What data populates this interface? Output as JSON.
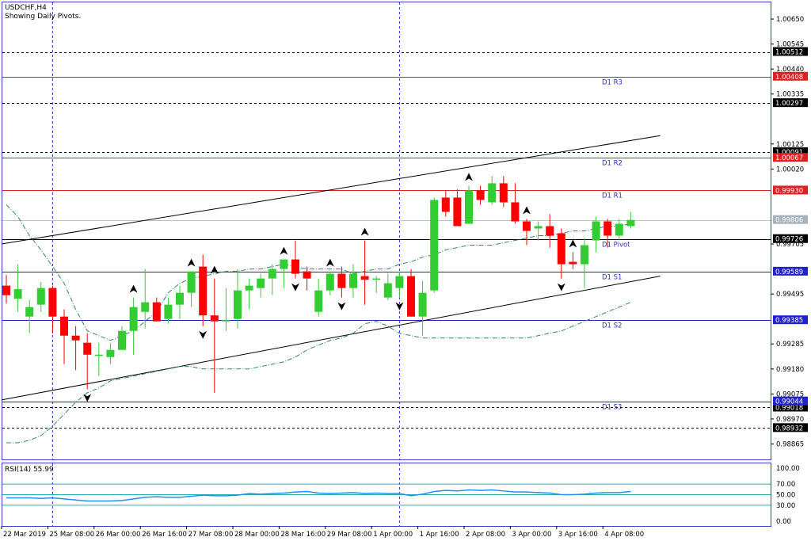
{
  "header": {
    "symbol": "USDCHF,H4",
    "subtitle": "Showing Daily Pivots."
  },
  "rsi_label": "RSI(14) 55.99",
  "colors": {
    "bull": "#32cd32",
    "bear": "#ff0000",
    "pivot_resistance": "#e02020",
    "pivot_support": "#2222cc",
    "pivot_main": "#000000",
    "frame": "#3b3bd6",
    "rsi": "#1e90ff",
    "rsi_levels": "#20b2aa",
    "ma": "#2e8b57"
  },
  "chart_data": {
    "type": "candlestick",
    "price_axis": {
      "range": [
        0.988,
        1.0072
      ],
      "ticks": [
        "1.00650",
        "1.00545",
        "1.00440",
        "1.00335",
        "1.00125",
        "1.00020",
        "0.99705",
        "0.99495",
        "0.99285",
        "0.99180",
        "0.99075",
        "0.98970",
        "0.98865"
      ]
    },
    "time_axis": {
      "ticks": [
        {
          "index": 0,
          "label": "22 Mar 2019"
        },
        {
          "index": 4,
          "label": "25 Mar 08:00"
        },
        {
          "index": 8,
          "label": "26 Mar 00:00"
        },
        {
          "index": 12,
          "label": "26 Mar 16:00"
        },
        {
          "index": 16,
          "label": "27 Mar 08:00"
        },
        {
          "index": 20,
          "label": "28 Mar 00:00"
        },
        {
          "index": 24,
          "label": "28 Mar 16:00"
        },
        {
          "index": 28,
          "label": "29 Mar 08:00"
        },
        {
          "index": 32,
          "label": "1 Apr 00:00"
        },
        {
          "index": 36,
          "label": "1 Apr 16:00"
        },
        {
          "index": 40,
          "label": "2 Apr 08:00"
        },
        {
          "index": 44,
          "label": "3 Apr 00:00"
        },
        {
          "index": 48,
          "label": "3 Apr 16:00"
        },
        {
          "index": 52,
          "label": "4 Apr 08:00"
        }
      ]
    },
    "candles": [
      {
        "o": 0.9953,
        "h": 0.99575,
        "l": 0.99455,
        "c": 0.9949
      },
      {
        "o": 0.99475,
        "h": 0.9962,
        "l": 0.9942,
        "c": 0.99515
      },
      {
        "o": 0.994,
        "h": 0.9947,
        "l": 0.9933,
        "c": 0.9944
      },
      {
        "o": 0.9945,
        "h": 0.99545,
        "l": 0.9942,
        "c": 0.9952
      },
      {
        "o": 0.9952,
        "h": 0.9953,
        "l": 0.9933,
        "c": 0.994
      },
      {
        "o": 0.994,
        "h": 0.9943,
        "l": 0.992,
        "c": 0.9932
      },
      {
        "o": 0.9932,
        "h": 0.9936,
        "l": 0.99175,
        "c": 0.993
      },
      {
        "o": 0.9929,
        "h": 0.9933,
        "l": 0.99095,
        "c": 0.9924
      },
      {
        "o": 0.9924,
        "h": 0.9929,
        "l": 0.9915,
        "c": 0.9924
      },
      {
        "o": 0.9923,
        "h": 0.9929,
        "l": 0.992,
        "c": 0.9926
      },
      {
        "o": 0.9926,
        "h": 0.9936,
        "l": 0.9926,
        "c": 0.9934
      },
      {
        "o": 0.9934,
        "h": 0.9948,
        "l": 0.9924,
        "c": 0.9944
      },
      {
        "o": 0.9942,
        "h": 0.996,
        "l": 0.9935,
        "c": 0.9946
      },
      {
        "o": 0.9946,
        "h": 0.9948,
        "l": 0.9938,
        "c": 0.9938
      },
      {
        "o": 0.9939,
        "h": 0.9948,
        "l": 0.9937,
        "c": 0.9945
      },
      {
        "o": 0.9945,
        "h": 0.9953,
        "l": 0.9939,
        "c": 0.995
      },
      {
        "o": 0.995,
        "h": 0.9959,
        "l": 0.9944,
        "c": 0.9959
      },
      {
        "o": 0.9961,
        "h": 0.9966,
        "l": 0.9936,
        "c": 0.99405
      },
      {
        "o": 0.99405,
        "h": 0.9956,
        "l": 0.9908,
        "c": 0.9938
      },
      {
        "o": 0.9938,
        "h": 0.9952,
        "l": 0.9934,
        "c": 0.99385
      },
      {
        "o": 0.9939,
        "h": 0.996,
        "l": 0.9935,
        "c": 0.9951
      },
      {
        "o": 0.9951,
        "h": 0.9956,
        "l": 0.9943,
        "c": 0.9953
      },
      {
        "o": 0.9952,
        "h": 0.9958,
        "l": 0.9948,
        "c": 0.9956
      },
      {
        "o": 0.9956,
        "h": 0.9962,
        "l": 0.9949,
        "c": 0.996
      },
      {
        "o": 0.996,
        "h": 0.9964,
        "l": 0.9952,
        "c": 0.9964
      },
      {
        "o": 0.9964,
        "h": 0.9972,
        "l": 0.9956,
        "c": 0.9958
      },
      {
        "o": 0.9959,
        "h": 0.9961,
        "l": 0.9951,
        "c": 0.9956
      },
      {
        "o": 0.9942,
        "h": 0.9956,
        "l": 0.994,
        "c": 0.9951
      },
      {
        "o": 0.9951,
        "h": 0.9959,
        "l": 0.9949,
        "c": 0.9958
      },
      {
        "o": 0.9958,
        "h": 0.9961,
        "l": 0.9948,
        "c": 0.9952
      },
      {
        "o": 0.9952,
        "h": 0.9962,
        "l": 0.9948,
        "c": 0.9958
      },
      {
        "o": 0.9957,
        "h": 0.9972,
        "l": 0.9945,
        "c": 0.99555
      },
      {
        "o": 0.9956,
        "h": 0.9957,
        "l": 0.995,
        "c": 0.9956
      },
      {
        "o": 0.9948,
        "h": 0.9958,
        "l": 0.9947,
        "c": 0.9954
      },
      {
        "o": 0.9952,
        "h": 0.9959,
        "l": 0.9948,
        "c": 0.9957
      },
      {
        "o": 0.9957,
        "h": 0.996,
        "l": 0.994,
        "c": 0.994
      },
      {
        "o": 0.994,
        "h": 0.9955,
        "l": 0.9932,
        "c": 0.995
      },
      {
        "o": 0.9951,
        "h": 0.999,
        "l": 0.995,
        "c": 0.9989
      },
      {
        "o": 0.999,
        "h": 0.9993,
        "l": 0.9982,
        "c": 0.9984
      },
      {
        "o": 0.999,
        "h": 0.99935,
        "l": 0.9978,
        "c": 0.9978
      },
      {
        "o": 0.9979,
        "h": 0.9995,
        "l": 0.9979,
        "c": 0.9993
      },
      {
        "o": 0.9993,
        "h": 0.9995,
        "l": 0.9987,
        "c": 0.9989
      },
      {
        "o": 0.9988,
        "h": 0.9999,
        "l": 0.9987,
        "c": 0.9996
      },
      {
        "o": 0.9996,
        "h": 0.9999,
        "l": 0.9986,
        "c": 0.9988
      },
      {
        "o": 0.9988,
        "h": 0.9996,
        "l": 0.9979,
        "c": 0.998
      },
      {
        "o": 0.998,
        "h": 0.9981,
        "l": 0.997,
        "c": 0.9976
      },
      {
        "o": 0.9977,
        "h": 0.998,
        "l": 0.9972,
        "c": 0.9978
      },
      {
        "o": 0.9978,
        "h": 0.9983,
        "l": 0.9969,
        "c": 0.9974
      },
      {
        "o": 0.9975,
        "h": 0.9977,
        "l": 0.9956,
        "c": 0.9962
      },
      {
        "o": 0.9963,
        "h": 0.9967,
        "l": 0.996,
        "c": 0.9962
      },
      {
        "o": 0.9962,
        "h": 0.9973,
        "l": 0.9952,
        "c": 0.997
      },
      {
        "o": 0.9972,
        "h": 0.9982,
        "l": 0.9967,
        "c": 0.998
      },
      {
        "o": 0.998,
        "h": 0.9981,
        "l": 0.9969,
        "c": 0.9974
      },
      {
        "o": 0.9974,
        "h": 0.9981,
        "l": 0.9972,
        "c": 0.9979
      },
      {
        "o": 0.9978,
        "h": 0.9984,
        "l": 0.9977,
        "c": 0.99806
      }
    ],
    "pivot_levels": [
      {
        "label": "D1 R3",
        "value": 1.00408,
        "tag": "1.00408",
        "kind": "resistance"
      },
      {
        "label": "D1 R2",
        "value": 1.00067,
        "tag": "1.00067",
        "kind": "resistance"
      },
      {
        "label": "D1 R1",
        "value": 0.9993,
        "tag": "0.99930",
        "kind": "resistance"
      },
      {
        "label": "D1 Pivot",
        "value": 0.99726,
        "tag": "0.99726",
        "kind": "pivot"
      },
      {
        "label": "D1 S1",
        "value": 0.99589,
        "tag": "0.99589",
        "kind": "support"
      },
      {
        "label": "D1 S2",
        "value": 0.99385,
        "tag": "0.99385",
        "kind": "support"
      },
      {
        "label": "D1 S3",
        "value": 0.99044,
        "tag": "0.99044",
        "kind": "support"
      }
    ],
    "dashed_levels": [
      {
        "value": 1.00512,
        "tag": "1.00512"
      },
      {
        "value": 1.00297,
        "tag": "1.00297"
      },
      {
        "value": 1.00091,
        "tag": "1.00091"
      },
      {
        "value": 0.99018,
        "tag": "0.99018"
      },
      {
        "value": 0.98932,
        "tag": "0.98932"
      }
    ],
    "current_price": {
      "value": 0.99806,
      "tag": "0.99806"
    },
    "trendlines": [
      {
        "from": {
          "index": 0,
          "price": 0.99705
        },
        "to": {
          "index": 56,
          "price": 1.0016
        }
      },
      {
        "from": {
          "index": 0,
          "price": 0.9905
        },
        "to": {
          "index": 56,
          "price": 0.9957
        }
      }
    ],
    "period_separators": [
      2,
      32
    ],
    "moving_average": [
      0.9987,
      0.9982,
      0.9974,
      0.9968,
      0.9961,
      0.9954,
      0.9943,
      0.9934,
      0.9932,
      0.993,
      0.9932,
      0.9934,
      0.9938,
      0.9942,
      0.995,
      0.9954,
      0.9956,
      0.9957,
      0.9958,
      0.9959,
      0.9959,
      0.996,
      0.996,
      0.9961,
      0.9962,
      0.9961,
      0.996,
      0.996,
      0.996,
      0.996,
      0.9958,
      0.9959,
      0.996,
      0.996,
      0.9962,
      0.9963,
      0.9965,
      0.9966,
      0.9968,
      0.9969,
      0.997,
      0.997,
      0.997,
      0.9971,
      0.9972,
      0.9973,
      0.9974,
      0.9974,
      0.9975,
      0.9976,
      0.9976,
      0.9977,
      0.9978,
      0.9978,
      0.9979
    ],
    "envelope": [
      0.9887,
      0.9887,
      0.9888,
      0.989,
      0.9894,
      0.9899,
      0.9904,
      0.9908,
      0.991,
      0.9913,
      0.9914,
      0.9915,
      0.9916,
      0.9917,
      0.9918,
      0.9919,
      0.9919,
      0.9918,
      0.9918,
      0.9918,
      0.9918,
      0.9918,
      0.9919,
      0.992,
      0.9921,
      0.9923,
      0.9926,
      0.9928,
      0.993,
      0.9931,
      0.9933,
      0.9937,
      0.9938,
      0.9936,
      0.9933,
      0.9932,
      0.9931,
      0.9931,
      0.9931,
      0.9931,
      0.9931,
      0.9931,
      0.9931,
      0.9931,
      0.9931,
      0.9931,
      0.9932,
      0.9933,
      0.9934,
      0.9936,
      0.9938,
      0.994,
      0.9942,
      0.9944,
      0.9946
    ],
    "fractals_up": [
      16,
      24,
      28,
      31,
      11,
      18,
      40,
      45,
      49
    ],
    "fractals_down": [
      7,
      17,
      25,
      29,
      34,
      48
    ],
    "rsi": {
      "range": [
        0,
        100
      ],
      "ticks": [
        "100.00",
        "70.00",
        "50.00",
        "30.00",
        "0.00"
      ],
      "levels": [
        70,
        50,
        30
      ],
      "values": [
        44,
        44,
        44,
        43,
        44,
        42,
        40,
        38,
        38,
        38,
        39,
        42,
        45,
        46,
        45,
        45,
        47,
        49,
        48,
        48,
        49,
        52,
        51,
        52,
        53,
        55,
        56,
        53,
        52,
        53,
        54,
        52,
        53,
        52,
        52,
        48,
        51,
        56,
        58,
        57,
        59,
        58,
        59,
        57,
        55,
        55,
        54,
        53,
        50,
        50,
        51,
        53,
        54,
        54,
        56
      ]
    }
  }
}
